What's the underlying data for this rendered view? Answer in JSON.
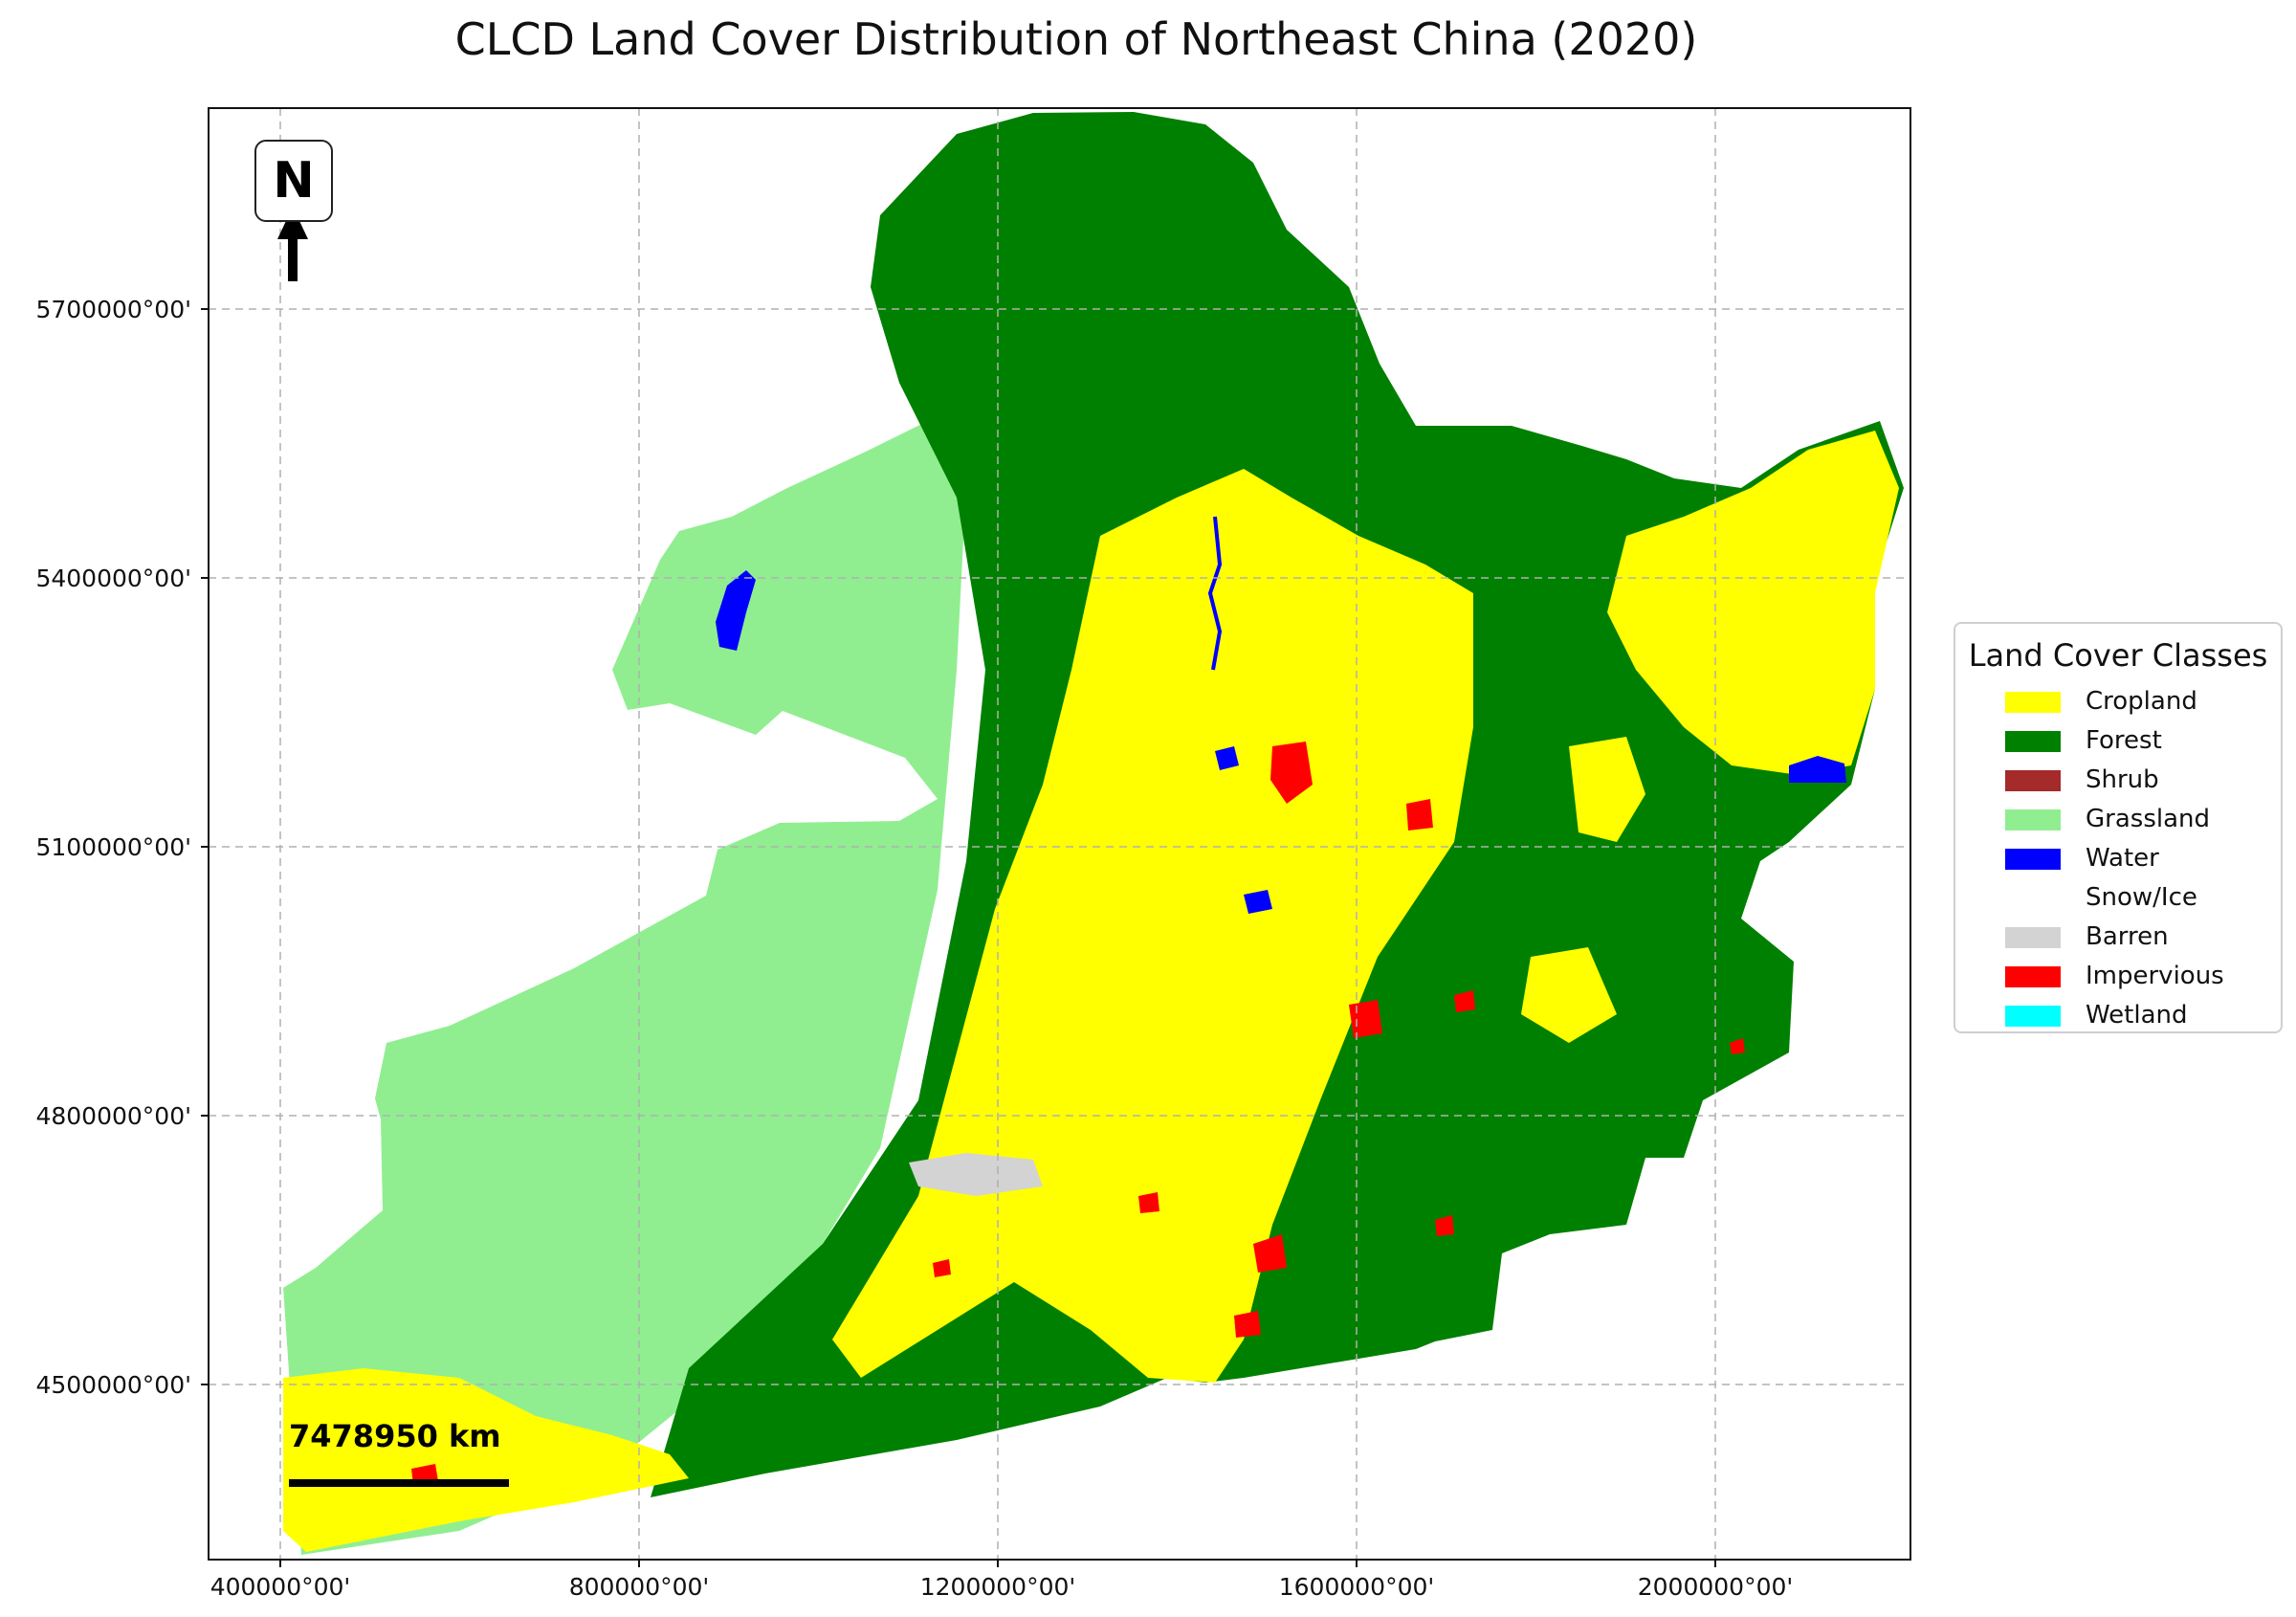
{
  "title": "CLCD Land Cover Distribution of Northeast China (2020)",
  "axes": {
    "yticks": [
      {
        "label": "5700000°00'",
        "value": 5700000
      },
      {
        "label": "5400000°00'",
        "value": 5400000
      },
      {
        "label": "5100000°00'",
        "value": 5100000
      },
      {
        "label": "4800000°00'",
        "value": 4800000
      },
      {
        "label": "4500000°00'",
        "value": 4500000
      }
    ],
    "xticks": [
      {
        "label": "400000°00'",
        "value": 400000
      },
      {
        "label": "800000°00'",
        "value": 800000
      },
      {
        "label": "1200000°00'",
        "value": 1200000
      },
      {
        "label": "1600000°00'",
        "value": 1600000
      },
      {
        "label": "2000000°00'",
        "value": 2000000
      }
    ],
    "grid": true
  },
  "north_arrow": {
    "label": "N"
  },
  "scale_bar": {
    "label": "7478950 km"
  },
  "legend": {
    "title": "Land Cover Classes",
    "items": [
      {
        "label": "Cropland",
        "color": "#ffff00"
      },
      {
        "label": "Forest",
        "color": "#008000"
      },
      {
        "label": "Shrub",
        "color": "#a52a2a"
      },
      {
        "label": "Grassland",
        "color": "#90ee90"
      },
      {
        "label": "Water",
        "color": "#0000ff"
      },
      {
        "label": "Snow/Ice",
        "color": "#ffffff"
      },
      {
        "label": "Barren",
        "color": "#d3d3d3"
      },
      {
        "label": "Impervious",
        "color": "#ff0000"
      },
      {
        "label": "Wetland",
        "color": "#00ffff"
      }
    ]
  }
}
